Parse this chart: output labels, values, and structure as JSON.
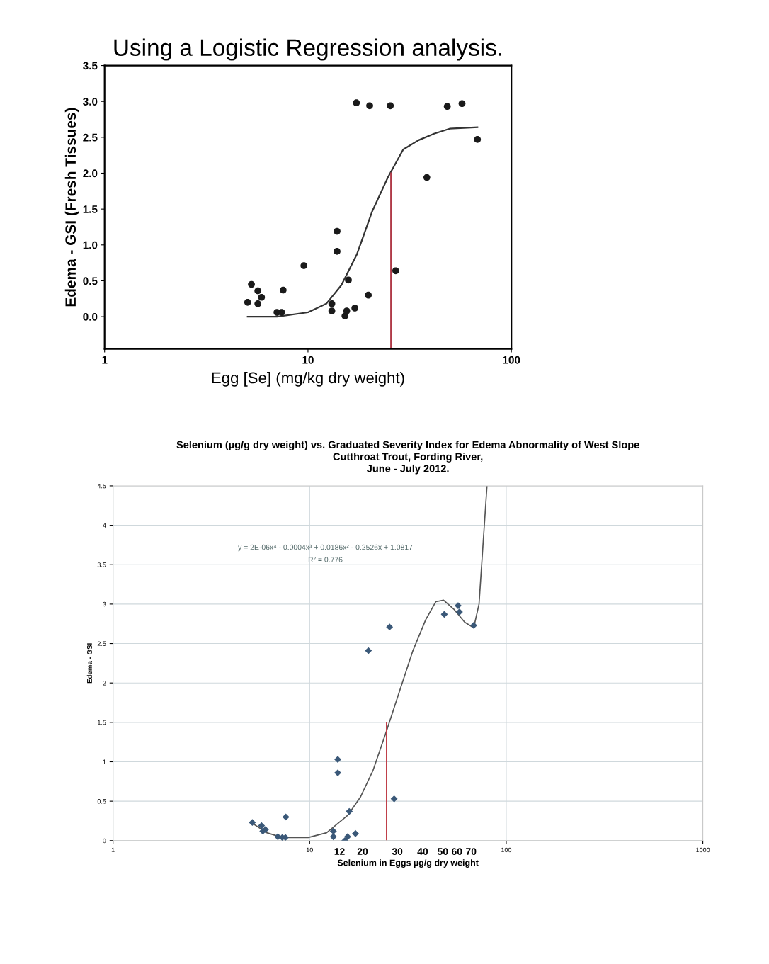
{
  "chart_data": [
    {
      "type": "scatter",
      "title": "Using a Logistic Regression analysis.",
      "xlabel": "Egg [Se] (mg/kg dry weight)",
      "ylabel": "Edema - GSI (Fresh Tissues)",
      "log": "x",
      "xlim": [
        1,
        100
      ],
      "xticks": [
        1,
        10,
        100
      ],
      "ylim": [
        -0.45,
        3.5
      ],
      "yticks": [
        {
          "value": 0,
          "label": "0.0"
        },
        {
          "value": 0.5,
          "label": "0.5"
        },
        {
          "value": 1,
          "label": "1.0"
        },
        {
          "value": 1.5,
          "label": "1.5"
        },
        {
          "value": 2,
          "label": "2.0"
        },
        {
          "value": 2.5,
          "label": "2.5"
        },
        {
          "value": 3,
          "label": "3.0"
        },
        {
          "value": 3.5,
          "label": "3.5"
        }
      ],
      "grid": false,
      "series": [
        {
          "marker": "circle",
          "color": "#1a1a1a",
          "x": [
            5.05,
            5.18,
            5.27,
            5.67,
            5.67,
            5.91,
            7.55,
            7.04,
            7.42,
            9.55,
            13.1,
            13.1,
            13.9,
            13.9,
            15.2,
            15.5,
            15.8,
            17.0,
            17.3,
            20.1,
            19.8,
            25.4,
            27.0,
            38.4,
            48.4,
            57.2,
            68.1
          ],
          "values": [
            0.2,
            null,
            0.45,
            0.36,
            0.18,
            0.27,
            0.37,
            0.06,
            0.06,
            0.71,
            0.18,
            0.08,
            1.19,
            0.91,
            0.01,
            0.08,
            0.51,
            0.12,
            2.98,
            2.94,
            0.3,
            2.94,
            0.64,
            1.94,
            2.93,
            2.97,
            2.47
          ]
        },
        {
          "type": "line",
          "marker": "none",
          "color": "#333333",
          "x": [
            5.05,
            7.05,
            10.0,
            12.3,
            14.6,
            17.4,
            20.7,
            24.7,
            29.4,
            35.0,
            41.7,
            49.7,
            68.1
          ],
          "values": [
            0.0,
            0.0,
            0.06,
            0.18,
            0.44,
            0.87,
            1.47,
            1.94,
            2.33,
            2.46,
            2.55,
            2.62,
            2.64
          ]
        },
        {
          "type": "line",
          "marker": "none",
          "color": "#b03a48",
          "x": [
            25.6,
            25.6
          ],
          "values": [
            -0.45,
            2.0
          ]
        }
      ]
    },
    {
      "type": "scatter",
      "title": "Selenium (µg/g dry weight) vs. Graduated Severity Index for Edema Abnormality of West Slope\nCutthroat Trout, Fording River,\nJune - July 2012.",
      "xlabel": "Selenium in Eggs µg/g dry weight",
      "ylabel": "Edema - GSI",
      "log": "x",
      "xlim": [
        1,
        1000
      ],
      "xticks": [
        1,
        10,
        100,
        1000
      ],
      "ylim": [
        0,
        4.5
      ],
      "yticks": [
        0,
        0.5,
        1,
        1.5,
        2,
        2.5,
        3,
        3.5,
        4,
        4.5
      ],
      "grid": true,
      "annotations": [
        "y = 2E-06x⁴ - 0.0004x³ + 0.0186x² - 0.2526x + 1.0817",
        "R² = 0.776",
        "12",
        "20",
        "30",
        "40",
        "50",
        "60",
        "70"
      ],
      "series": [
        {
          "marker": "diamond",
          "color": "#3a5878",
          "x": [
            5.11,
            5.69,
            5.78,
            5.96,
            6.89,
            7.26,
            7.53,
            7.57,
            13.2,
            13.2,
            13.9,
            13.9,
            15.1,
            15.6,
            15.9,
            17.1,
            19.9,
            25.5,
            26.9,
            48.4,
            56.9,
            57.8,
            68.3
          ],
          "values": [
            0.23,
            0.19,
            0.12,
            0.14,
            0.05,
            0.04,
            0.04,
            0.3,
            0.12,
            0.05,
            1.03,
            0.86,
            0.0,
            0.05,
            0.37,
            0.09,
            2.41,
            2.71,
            0.53,
            2.87,
            2.98,
            2.9,
            2.73
          ]
        },
        {
          "type": "line",
          "marker": "none",
          "color": "#555555",
          "x": [
            5.11,
            6.05,
            7.26,
            9.84,
            12.2,
            15.6,
            18.1,
            21.0,
            24.6,
            28.6,
            33.4,
            38.9,
            43.8,
            48.0,
            54.4,
            61.5,
            68.3,
            72.7,
            76.1,
            79.8
          ],
          "values": [
            0.22,
            0.1,
            0.04,
            0.04,
            0.1,
            0.32,
            0.55,
            0.89,
            1.39,
            1.89,
            2.4,
            2.8,
            3.03,
            3.05,
            2.93,
            2.77,
            2.7,
            3.0,
            3.74,
            4.5
          ]
        },
        {
          "type": "line",
          "marker": "none",
          "color": "#c0404a",
          "x": [
            24.6,
            24.6
          ],
          "values": [
            1.49,
            0
          ]
        }
      ]
    }
  ]
}
